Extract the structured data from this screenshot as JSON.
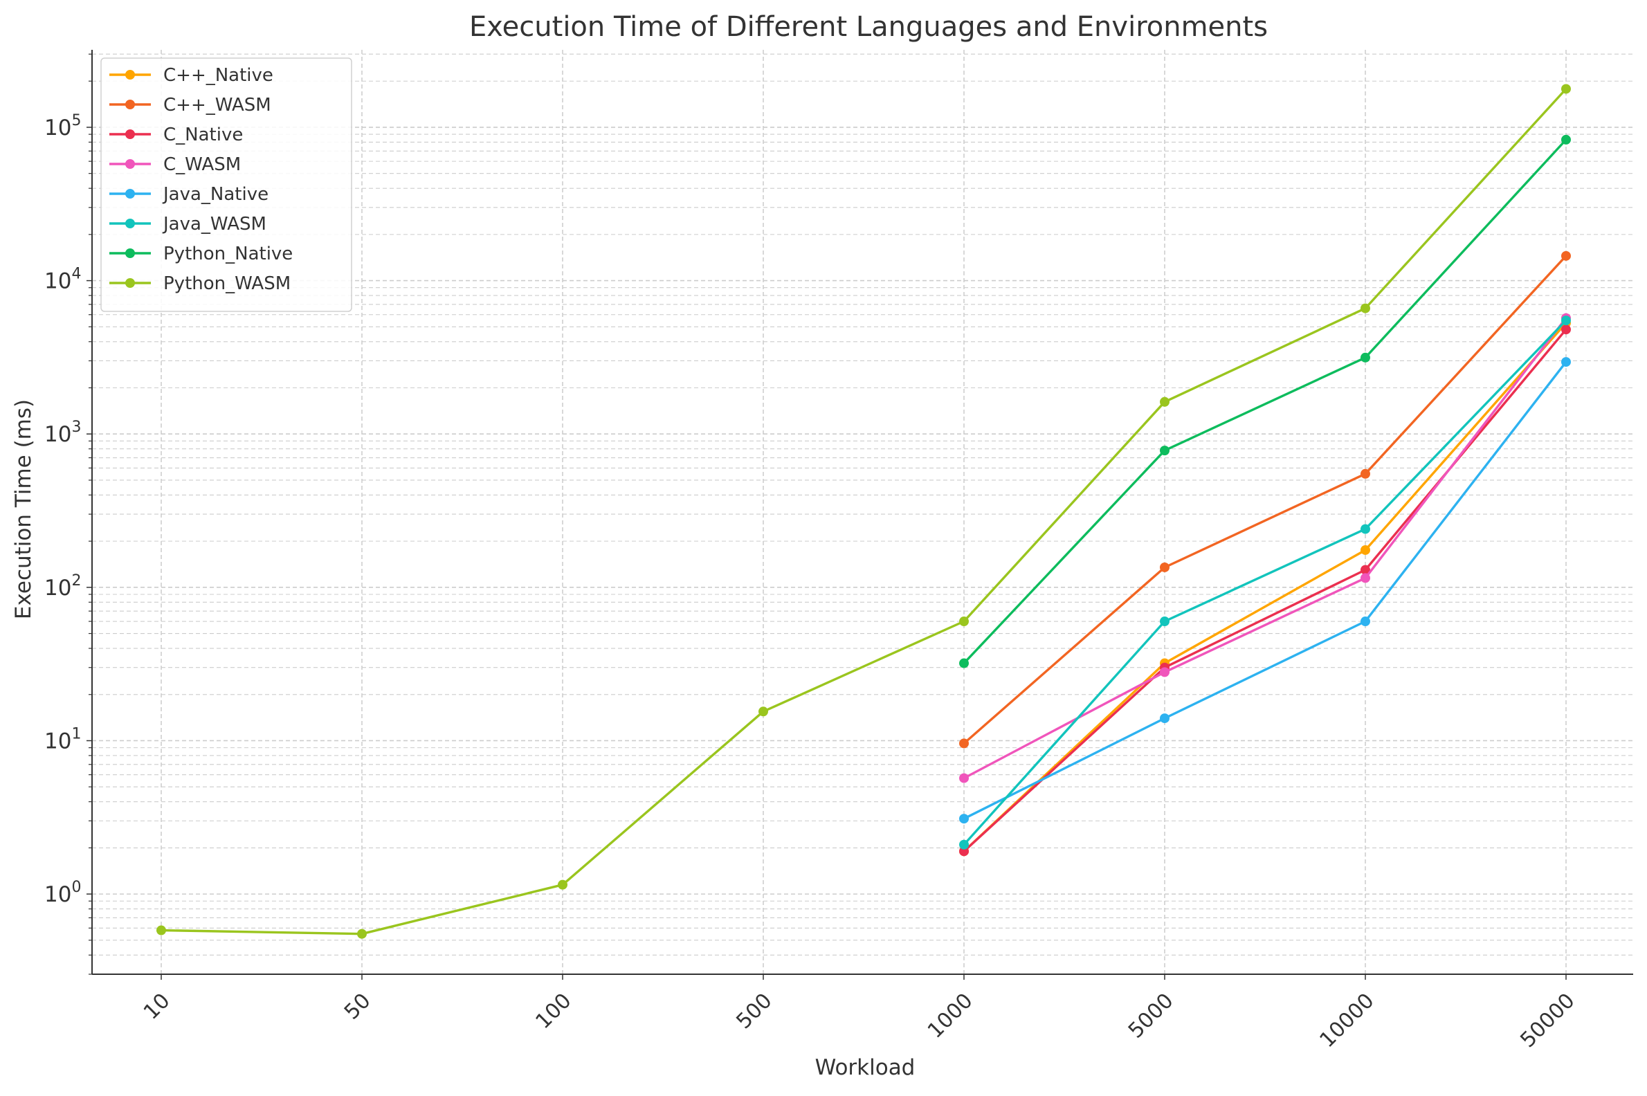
{
  "chart_data": {
    "type": "line",
    "title": "Execution Time of Different Languages and Environments",
    "xlabel": "Workload",
    "ylabel": "Execution Time (ms)",
    "x_scale": "categorical",
    "y_scale": "log",
    "categories": [
      "10",
      "50",
      "100",
      "500",
      "1000",
      "5000",
      "10000",
      "50000"
    ],
    "ylim": [
      0.3,
      320000
    ],
    "y_ticks": [
      {
        "value": 1,
        "base": "10",
        "exp": "0"
      },
      {
        "value": 10,
        "base": "10",
        "exp": "1"
      },
      {
        "value": 100,
        "base": "10",
        "exp": "2"
      },
      {
        "value": 1000,
        "base": "10",
        "exp": "3"
      },
      {
        "value": 10000,
        "base": "10",
        "exp": "4"
      },
      {
        "value": 100000,
        "base": "10",
        "exp": "5"
      }
    ],
    "grid": true,
    "legend_position": "top-left",
    "series": [
      {
        "name": "C++_Native",
        "color": "#FFA500",
        "values": [
          null,
          null,
          null,
          null,
          1.9,
          32,
          175,
          5300
        ]
      },
      {
        "name": "C++_WASM",
        "color": "#F26522",
        "values": [
          null,
          null,
          null,
          null,
          9.6,
          135,
          550,
          14500
        ]
      },
      {
        "name": "C_Native",
        "color": "#EB2F4F",
        "values": [
          null,
          null,
          null,
          null,
          1.9,
          30,
          130,
          4800
        ]
      },
      {
        "name": "C_WASM",
        "color": "#F055BB",
        "values": [
          null,
          null,
          null,
          null,
          5.7,
          28,
          115,
          5700
        ]
      },
      {
        "name": "Java_Native",
        "color": "#2DB2F0",
        "values": [
          null,
          null,
          null,
          null,
          3.1,
          14,
          60,
          2950
        ]
      },
      {
        "name": "Java_WASM",
        "color": "#12C4BC",
        "values": [
          null,
          null,
          null,
          null,
          2.1,
          60,
          240,
          5500
        ]
      },
      {
        "name": "Python_Native",
        "color": "#0DBC5D",
        "values": [
          null,
          null,
          null,
          null,
          32,
          780,
          3150,
          83000
        ]
      },
      {
        "name": "Python_WASM",
        "color": "#9AC51E",
        "values": [
          0.58,
          0.55,
          1.15,
          15.5,
          60,
          1620,
          6600,
          178000
        ]
      }
    ]
  }
}
